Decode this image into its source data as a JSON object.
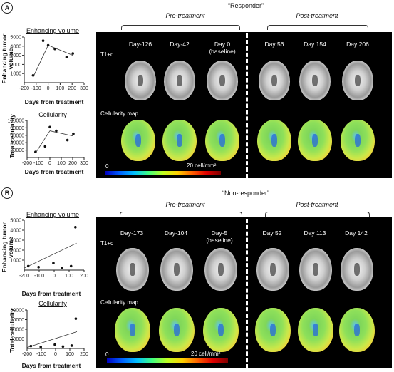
{
  "panels": [
    {
      "label": "A",
      "title": "“Responder”",
      "pre_label": "Pre-treatment",
      "post_label": "Post-treatment",
      "days": [
        "Day-126",
        "Day-42",
        "Day 0\n(baseline)",
        "Day 56",
        "Day 154",
        "Day 206"
      ],
      "row1_label": "T1+c",
      "row2_label": "Cellularity map",
      "scale_min": "0",
      "scale_max": "20 cell/mm²",
      "charts": [
        {
          "title": "Enhancing volume",
          "ylabel": "Enhancing tumor\nvolume",
          "xlabel": "Days from treatment"
        },
        {
          "title": "Cellularity",
          "ylabel": "Total cellularity",
          "xlabel": "Days from treatment"
        }
      ]
    },
    {
      "label": "B",
      "title": "“Non-responder”",
      "pre_label": "Pre-treatment",
      "post_label": "Post-treatment",
      "days": [
        "Day-173",
        "Day-104",
        "Day-5\n(baseline)",
        "Day 52",
        "Day 113",
        "Day 142"
      ],
      "row1_label": "T1+c",
      "row2_label": "Cellularity map",
      "scale_min": "0",
      "scale_max": "20 cell/mm²",
      "charts": [
        {
          "title": "Enhancing volume",
          "ylabel": "Enhancing tumor\nvolume",
          "xlabel": "Days from treatment"
        },
        {
          "title": "Cellularity",
          "ylabel": "Total cellularity",
          "xlabel": "Days from treatment"
        }
      ]
    }
  ],
  "chart_data": [
    {
      "type": "scatter",
      "title": "Enhancing volume",
      "xlabel": "Days from treatment",
      "ylabel": "Enhancing tumor volume",
      "xlim": [
        -200,
        300
      ],
      "ylim": [
        0,
        5000
      ],
      "xticks": [
        -200,
        -100,
        0,
        100,
        200,
        300
      ],
      "yticks": [
        1000,
        2000,
        3000,
        4000,
        5000
      ],
      "points": [
        [
          -126,
          800
        ],
        [
          -42,
          4600
        ],
        [
          0,
          4100
        ],
        [
          56,
          3700
        ],
        [
          154,
          2800
        ],
        [
          206,
          3200
        ]
      ],
      "trendline": [
        [
          -126,
          600
        ],
        [
          0,
          4100
        ],
        [
          206,
          3000
        ]
      ]
    },
    {
      "type": "scatter",
      "title": "Cellularity",
      "xlabel": "Days from treatment",
      "ylabel": "Total cellularity",
      "xlim": [
        -200,
        300
      ],
      "ylim": [
        0,
        100000
      ],
      "xticks": [
        -200,
        -100,
        0,
        100,
        200,
        300
      ],
      "yticks": [
        20000,
        40000,
        60000,
        80000,
        100000
      ],
      "points": [
        [
          -126,
          15000
        ],
        [
          -42,
          30000
        ],
        [
          0,
          82000
        ],
        [
          56,
          72000
        ],
        [
          154,
          47000
        ],
        [
          206,
          64000
        ]
      ],
      "trendline": [
        [
          -126,
          12000
        ],
        [
          0,
          72000
        ],
        [
          206,
          58000
        ]
      ]
    },
    {
      "type": "scatter",
      "title": "Enhancing volume",
      "xlabel": "Days from treatment",
      "ylabel": "Enhancing tumor volume",
      "xlim": [
        -200,
        200
      ],
      "ylim": [
        0,
        5000
      ],
      "xticks": [
        -200,
        -100,
        0,
        100,
        200
      ],
      "yticks": [
        1000,
        2000,
        3000,
        4000,
        5000
      ],
      "points": [
        [
          -173,
          400
        ],
        [
          -104,
          300
        ],
        [
          -5,
          700
        ],
        [
          52,
          200
        ],
        [
          113,
          400
        ],
        [
          142,
          4300
        ]
      ],
      "trendline": [
        [
          -200,
          200
        ],
        [
          150,
          2700
        ]
      ]
    },
    {
      "type": "scatter",
      "title": "Cellularity",
      "xlabel": "Days from treatment",
      "ylabel": "Total cellularity",
      "xlim": [
        -200,
        200
      ],
      "ylim": [
        0,
        80000
      ],
      "xticks": [
        -200,
        -100,
        0,
        100,
        200
      ],
      "yticks": [
        20000,
        40000,
        60000,
        80000
      ],
      "points": [
        [
          -173,
          5000
        ],
        [
          -104,
          3000
        ],
        [
          -5,
          8000
        ],
        [
          52,
          4000
        ],
        [
          113,
          6000
        ],
        [
          142,
          62000
        ]
      ],
      "trendline": [
        [
          -200,
          2000
        ],
        [
          150,
          35000
        ]
      ]
    }
  ]
}
